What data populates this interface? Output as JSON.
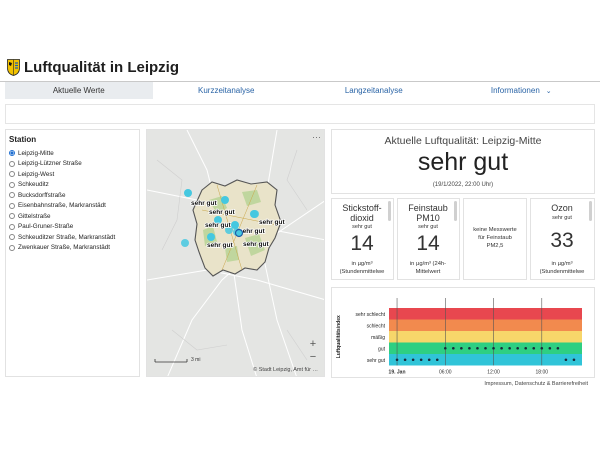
{
  "app": {
    "title": "Luftqualität in Leipzig",
    "logo_icon": "leipzig-coat-of-arms-icon"
  },
  "tabs": [
    {
      "label": "Aktuelle Werte",
      "active": true
    },
    {
      "label": "Kurzzeitanalyse",
      "active": false
    },
    {
      "label": "Langzeitanalyse",
      "active": false
    },
    {
      "label": "Informationen",
      "active": false,
      "icon": "chevron-down-icon"
    }
  ],
  "stations": {
    "title": "Station",
    "items": [
      {
        "label": "Leipzig-Mitte",
        "checked": true
      },
      {
        "label": "Leipzig-Lützner Straße",
        "checked": false
      },
      {
        "label": "Leipzig-West",
        "checked": false
      },
      {
        "label": "Schkeuditz",
        "checked": false
      },
      {
        "label": "Bucksdorffstraße",
        "checked": false
      },
      {
        "label": "Eisenbahnstraße, Markranstädt",
        "checked": false
      },
      {
        "label": "Gittelstraße",
        "checked": false
      },
      {
        "label": "Paul-Gruner-Straße",
        "checked": false
      },
      {
        "label": "Schkeuditzer Straße, Markranstädt",
        "checked": false
      },
      {
        "label": "Zwenkauer Straße, Markranstädt",
        "checked": false
      }
    ]
  },
  "map": {
    "more_label": "···",
    "zoom_in": "+",
    "zoom_out": "−",
    "scale_label": "3 mi",
    "attribution": "© Stadt Leipzig, Amt für …",
    "marker_labels": [
      "sehr gut",
      "sehr gut",
      "sehr gut",
      "sehr gut",
      "sehr gut",
      "sehr gut",
      "sehr gut"
    ],
    "marker_color": "#45c8e0"
  },
  "current": {
    "title": "Aktuelle Luftqualität: Leipzig-Mitte",
    "value": "sehr gut",
    "timestamp": "(19/1/2022, 22:00 Uhr)"
  },
  "metrics": [
    {
      "name": "Stickstoff-\ndioxid",
      "rating": "sehr gut",
      "value": "14",
      "unit": "in µg/m³",
      "note": "(Stundenmittelwe"
    },
    {
      "name": "Feinstaub\nPM10",
      "rating": "sehr gut",
      "value": "14",
      "unit": "in µg/m³ (24h-",
      "note": "Mittelwert"
    },
    {
      "name": "",
      "rating": "",
      "value": "",
      "unit": "",
      "note": "keine Messwerte\nfür Feinstaub\nPM2,5"
    },
    {
      "name": "Ozon",
      "rating": "sehr gut",
      "value": "33",
      "unit": "in µg/m³",
      "note": "(Stundenmittelwe"
    }
  ],
  "footer": "Impressum, Datenschutz & Barrierefreiheit",
  "chart_data": {
    "type": "scatter",
    "ylabel": "Luftqualitätsindex",
    "categories": [
      "sehr schlecht",
      "schlecht",
      "mäßig",
      "gut",
      "sehr gut"
    ],
    "band_colors": [
      "#e8474f",
      "#f28a4e",
      "#f7d66a",
      "#2ecf82",
      "#30c4d8"
    ],
    "x_ticks": [
      "19. Jan",
      "06:00",
      "12:00",
      "18:00"
    ],
    "x_range_hours": [
      -1,
      23
    ],
    "series": [
      {
        "x_hours": [
          0,
          1,
          2,
          3,
          4,
          5,
          6,
          7,
          8,
          9,
          10,
          11,
          12,
          13,
          14,
          15,
          16,
          17,
          18,
          19,
          20,
          21,
          22
        ],
        "levels": [
          "sehr gut",
          "sehr gut",
          "sehr gut",
          "sehr gut",
          "sehr gut",
          "sehr gut",
          "gut",
          "gut",
          "gut",
          "gut",
          "gut",
          "gut",
          "gut",
          "gut",
          "gut",
          "gut",
          "gut",
          "gut",
          "gut",
          "gut",
          "gut",
          "sehr gut",
          "sehr gut"
        ]
      }
    ],
    "vertical_lines_hours": [
      0,
      6,
      12,
      18
    ]
  }
}
